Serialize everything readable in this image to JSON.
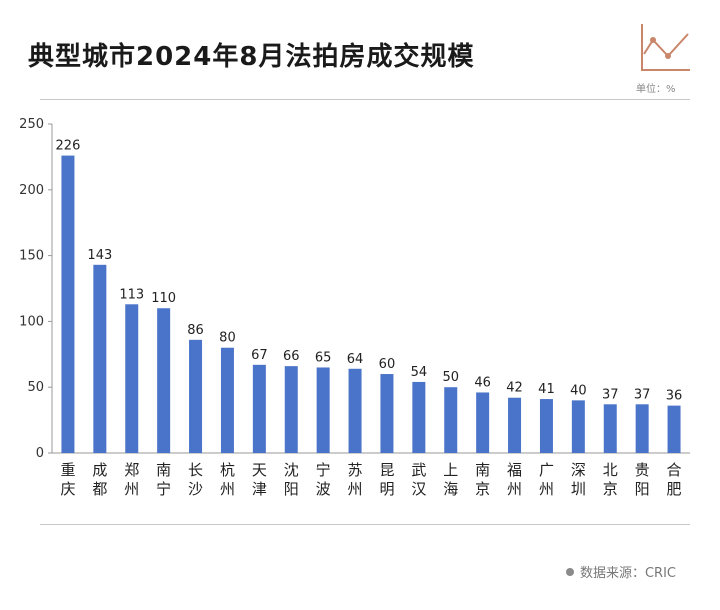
{
  "title": "典型城市2024年8月法拍房成交规模",
  "unit_label": "单位：%",
  "source_label": "数据来源：CRIC",
  "colors": {
    "bar": "#4a74c9",
    "axis": "#999999",
    "logo": "#c9866b"
  },
  "chart_data": {
    "type": "bar",
    "title": "典型城市2024年8月法拍房成交规模",
    "categories": [
      "重庆",
      "成都",
      "郑州",
      "南宁",
      "长沙",
      "杭州",
      "天津",
      "沈阳",
      "宁波",
      "苏州",
      "昆明",
      "武汉",
      "上海",
      "南京",
      "福州",
      "广州",
      "深圳",
      "北京",
      "贵阳",
      "合肥"
    ],
    "values": [
      226,
      143,
      113,
      110,
      86,
      80,
      67,
      66,
      65,
      64,
      60,
      54,
      50,
      46,
      42,
      41,
      40,
      37,
      37,
      36
    ],
    "ylim": [
      0,
      250
    ],
    "yticks": [
      0,
      50,
      100,
      150,
      200,
      250
    ],
    "grid": false,
    "xlabel": "",
    "ylabel": ""
  }
}
